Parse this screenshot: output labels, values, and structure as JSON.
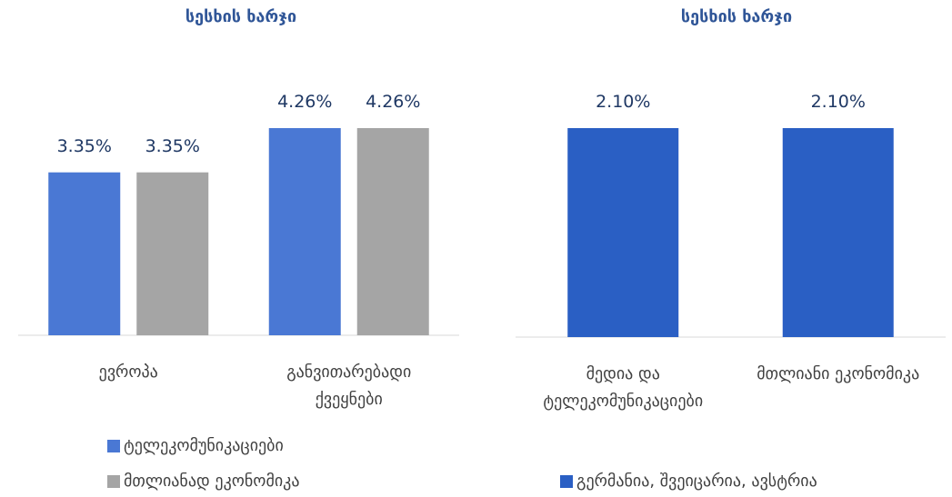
{
  "chart_data": [
    {
      "type": "bar",
      "title": "სესხის ხარჯი",
      "categories": [
        "ევროპა",
        "განვითარებადი ქვეყნები"
      ],
      "series": [
        {
          "name": "ტელეკომუნიკაციები",
          "color": "#4a78d4",
          "values": [
            3.35,
            4.26
          ],
          "value_labels": [
            "3.35%",
            "4.26%"
          ]
        },
        {
          "name": "მთლიანად ეკონომიკა",
          "color": "#a5a5a5",
          "values": [
            3.35,
            4.26
          ],
          "value_labels": [
            "3.35%",
            "4.26%"
          ]
        }
      ]
    },
    {
      "type": "bar",
      "title": "სესხის ხარჯი",
      "categories": [
        "მედია და ტელეკომუნიკაციები",
        "მთლიანი ეკონომიკა"
      ],
      "series": [
        {
          "name": "გერმანია, შვეიცარია, ავსტრია",
          "color": "#2a5fc4",
          "values": [
            2.1,
            2.1
          ],
          "value_labels": [
            "2.10%",
            "2.10%"
          ]
        }
      ]
    }
  ]
}
